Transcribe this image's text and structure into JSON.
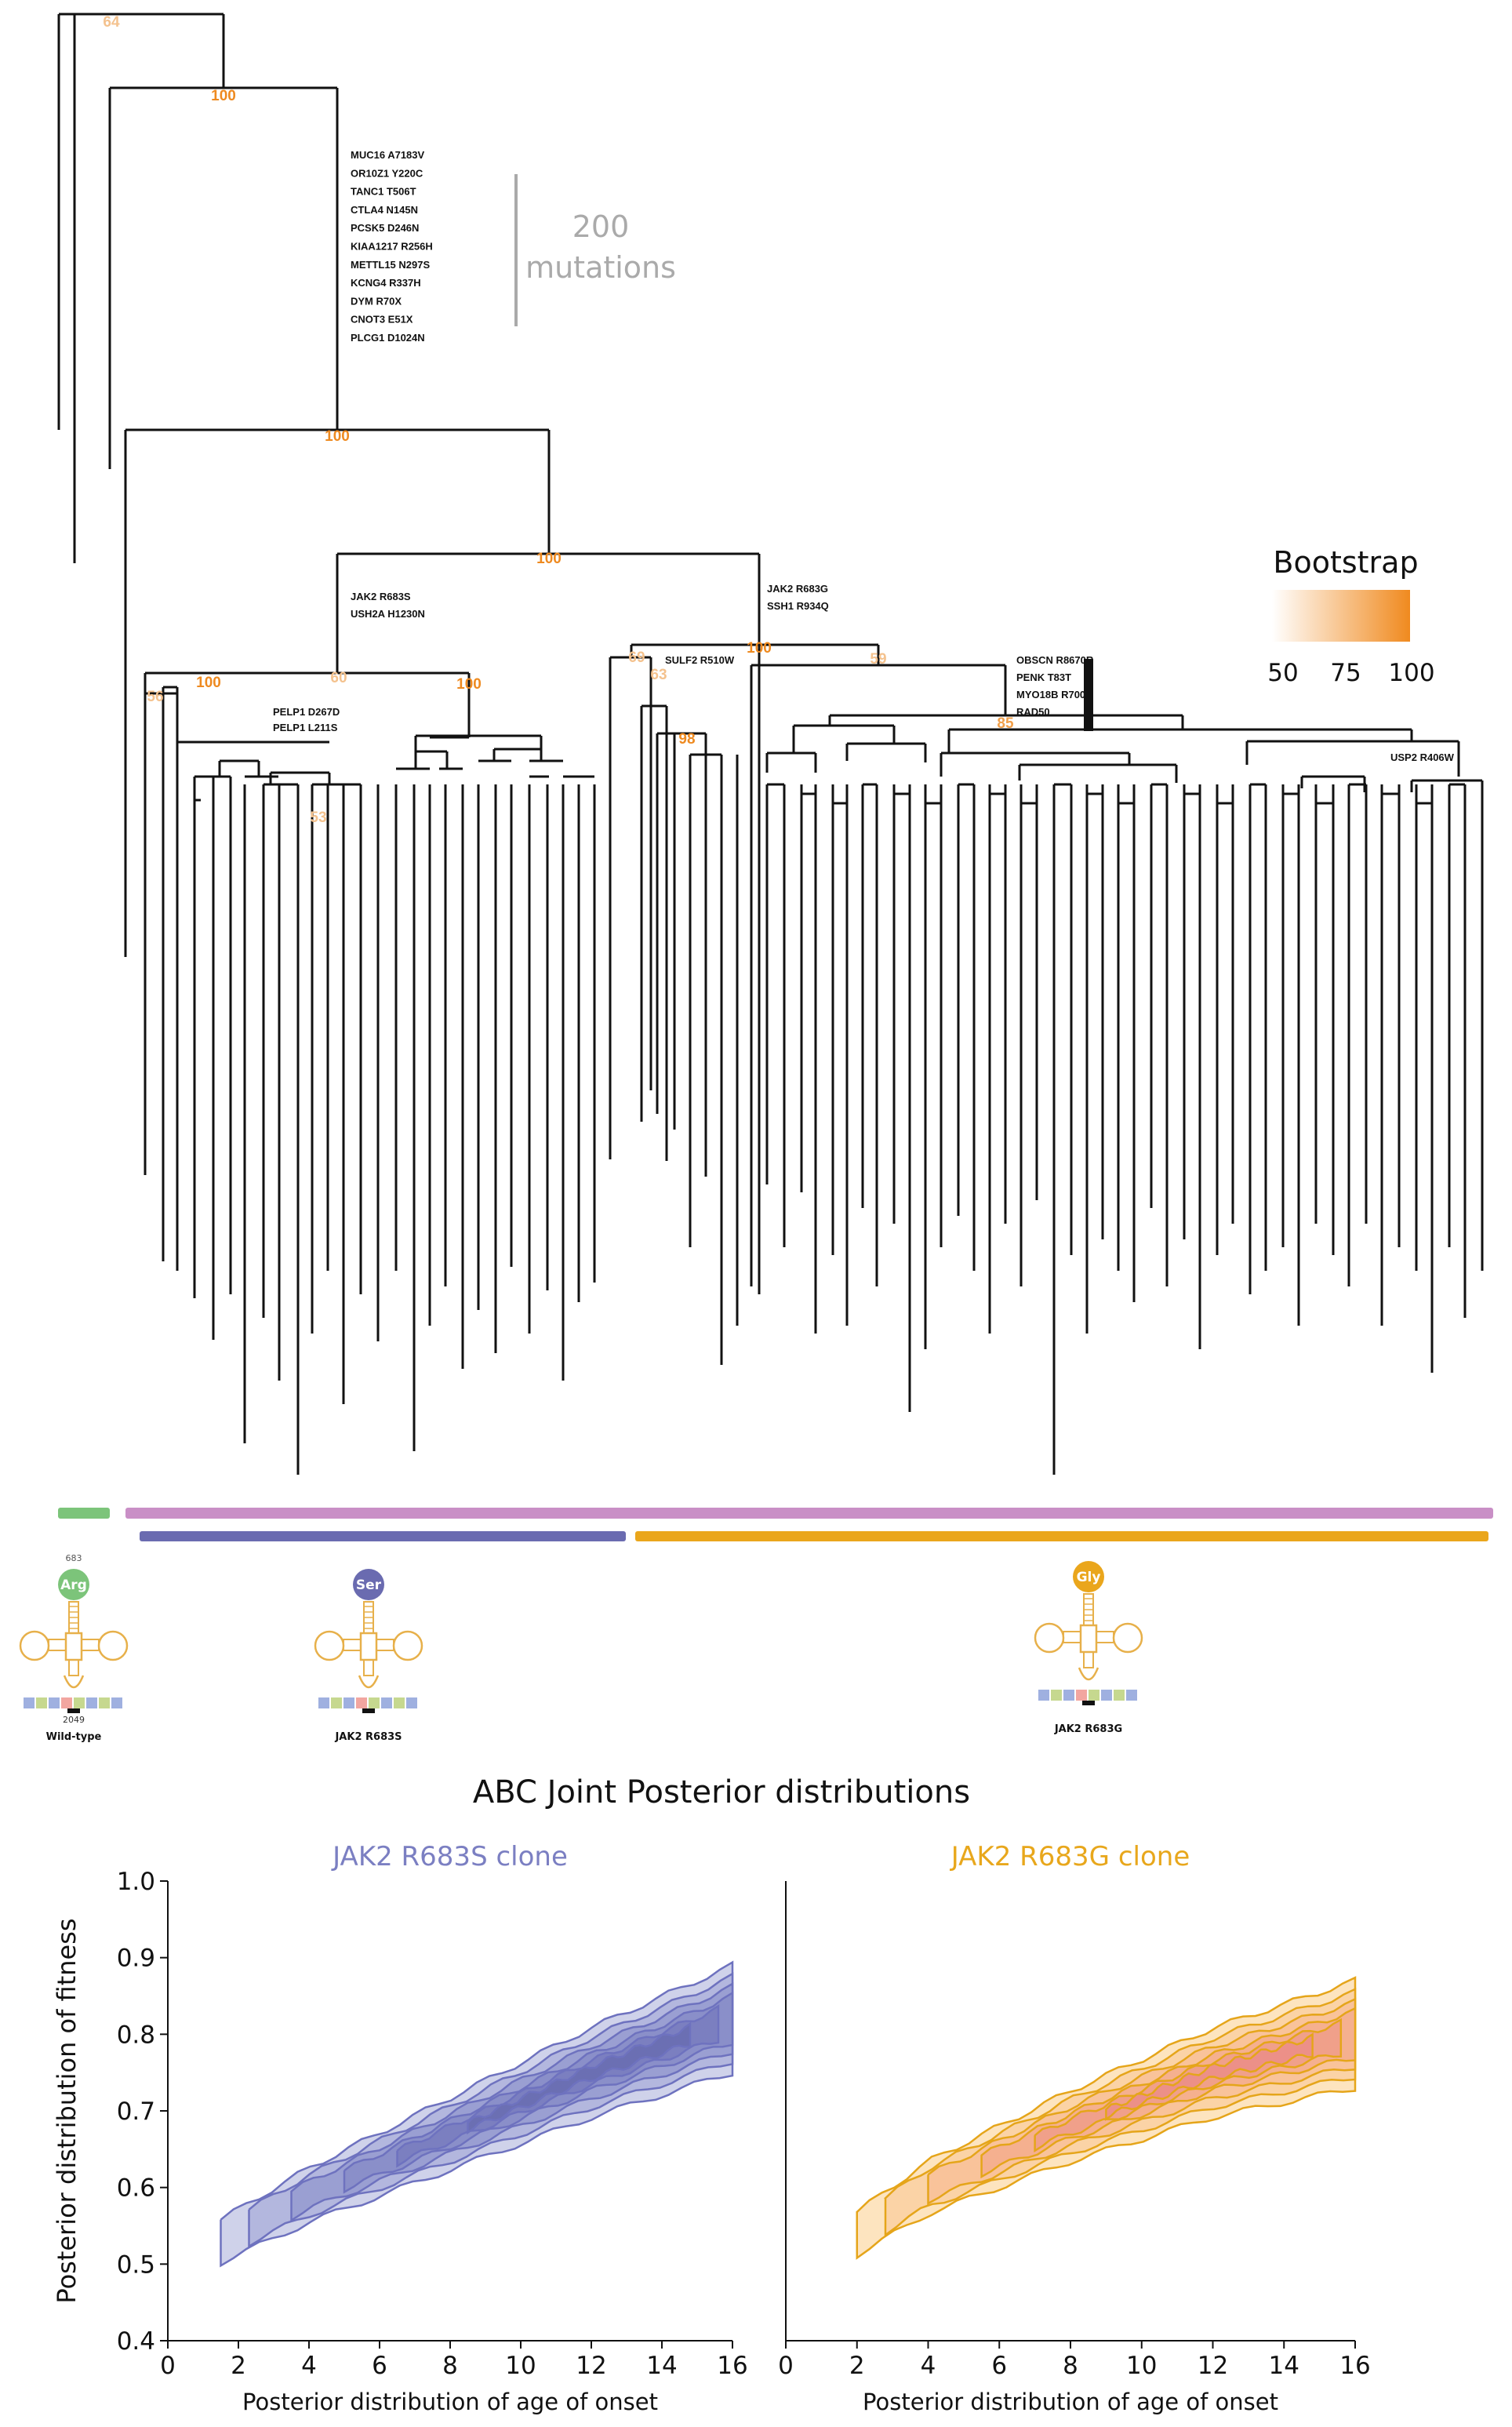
{
  "tree_annotations": {
    "top_mutations": [
      "MUC16 A7183V",
      "OR10Z1 Y220C",
      "TANC1 T506T",
      "CTLA4 N145N",
      "PCSK5 D246N",
      "KIAA1217 R256H",
      "METTL15 N297S",
      "KCNG4 R337H",
      "DYM R70X",
      "CNOT3 E51X",
      "PLCG1 D1024N"
    ],
    "scale_value": "200",
    "scale_unit": "mutations",
    "jak2s_mutations": [
      "JAK2 R683S",
      "USH2A H1230N"
    ],
    "jak2g_mutations": [
      "JAK2 R683G",
      "SSH1 R934Q"
    ],
    "pelp_mutations": [
      "PELP1 D267D",
      "PELP1 L211S"
    ],
    "sulf_mutation": "SULF2 R510W",
    "obscn_mutations": [
      "OBSCN R8670R",
      "PENK T83T",
      "MYO18B R700Q",
      "RAD50"
    ],
    "usp_mutation": "USP2 R406W",
    "bootstrap_values": [
      "64",
      "100",
      "100",
      "100",
      "56",
      "100",
      "60",
      "100",
      "53",
      "69",
      "63",
      "98",
      "100",
      "59",
      "85"
    ]
  },
  "bootstrap_legend": {
    "title": "Bootstrap",
    "ticks": [
      "50",
      "75",
      "100"
    ],
    "color_low": "#fff2e6",
    "color_high": "#f08a1f"
  },
  "clone_bars": [
    {
      "color": "#7cc47a"
    },
    {
      "color": "#c98fc6"
    },
    {
      "color": "#6a6bb0"
    },
    {
      "color": "#eaa61c"
    }
  ],
  "trna_icons": [
    {
      "amino": "Arg",
      "color": "#7cc47a",
      "label": "Wild-type",
      "position_label": "683",
      "codon_label": "2049"
    },
    {
      "amino": "Ser",
      "color": "#6a6bb0",
      "label": "JAK2 R683S"
    },
    {
      "amino": "Gly",
      "color": "#eaa61c",
      "label": "JAK2 R683G"
    }
  ],
  "section_title": "ABC Joint Posterior distributions",
  "chart_data": [
    {
      "type": "contour",
      "title": "JAK2 R683S clone",
      "title_color": "#7b7fc2",
      "xlabel": "Posterior distribution of age of onset",
      "ylabel": "Posterior distribution of fitness",
      "xlim": [
        0,
        16
      ],
      "ylim": [
        0.4,
        1.0
      ],
      "xticks": [
        "0",
        "2",
        "4",
        "6",
        "8",
        "10",
        "12",
        "14",
        "16"
      ],
      "yticks": [
        "0.4",
        "0.5",
        "0.6",
        "0.7",
        "0.8",
        "0.9",
        "1.0"
      ],
      "fill_colors": [
        "#cfd2ea",
        "#b3b7de",
        "#9a9fd2",
        "#8a8fc9",
        "#7b7fc0",
        "#6b6fb3"
      ],
      "line_color": "#6e72bf",
      "trend": {
        "x": [
          1.5,
          4,
          8,
          12,
          16
        ],
        "y": [
          0.53,
          0.59,
          0.67,
          0.75,
          0.82
        ]
      }
    },
    {
      "type": "contour",
      "title": "JAK2 R683G clone",
      "title_color": "#e8a71c",
      "xlabel": "Posterior distribution of age of onset",
      "ylabel": "",
      "xlim": [
        0,
        16
      ],
      "ylim": [
        0.4,
        1.0
      ],
      "xticks": [
        "0",
        "2",
        "4",
        "6",
        "8",
        "10",
        "12",
        "14",
        "16"
      ],
      "yticks": [],
      "fill_colors": [
        "#fde4bf",
        "#fbd3a6",
        "#f9c39a",
        "#f5b08f",
        "#f0a08a",
        "#ec9088"
      ],
      "line_color": "#e5a51a",
      "trend": {
        "x": [
          2,
          4,
          8,
          12,
          16
        ],
        "y": [
          0.54,
          0.6,
          0.68,
          0.75,
          0.8
        ]
      }
    }
  ]
}
